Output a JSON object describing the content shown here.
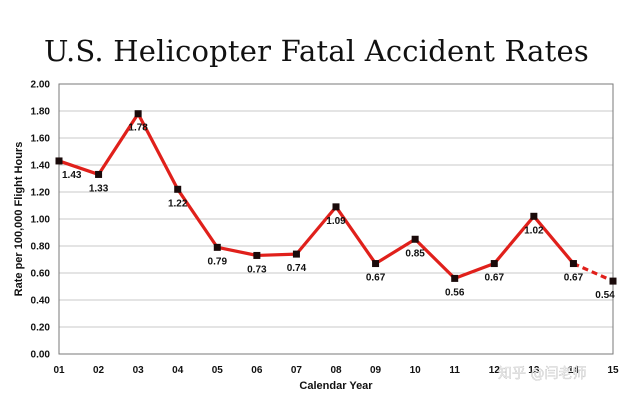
{
  "chart_data": {
    "type": "line",
    "title": "U.S. Helicopter Fatal Accident Rates",
    "xlabel": "Calendar Year",
    "ylabel": "Rate per 100,000 Flight Hours",
    "categories": [
      "01",
      "02",
      "03",
      "04",
      "05",
      "06",
      "07",
      "08",
      "09",
      "10",
      "11",
      "12",
      "13",
      "14",
      "15"
    ],
    "x_tick_labels": [
      "01",
      "02",
      "03",
      "04",
      "05",
      "06",
      "07",
      "08",
      "09",
      "10",
      "11",
      "12",
      "13",
      "14",
      "15"
    ],
    "values": [
      1.43,
      1.33,
      1.78,
      1.22,
      0.79,
      0.73,
      0.74,
      1.09,
      0.67,
      0.85,
      0.56,
      0.67,
      1.02,
      0.67,
      0.54
    ],
    "data_labels": [
      "1.43",
      "1.33",
      "1.78",
      "1.22",
      "0.79",
      "0.73",
      "0.74",
      "1.09",
      "0.67",
      "0.85",
      "0.56",
      "0.67",
      "1.02",
      "0.67",
      "0.54"
    ],
    "y_ticks": [
      "0.00",
      "0.20",
      "0.40",
      "0.60",
      "0.80",
      "1.00",
      "1.20",
      "1.40",
      "1.60",
      "1.80",
      "2.00"
    ],
    "ylim": [
      0,
      2.0
    ],
    "grid": true,
    "dashed_last_segment": true,
    "line_color": "#e0201b",
    "marker_color": "#1a0a0a"
  },
  "watermark": "知乎 @闫老师"
}
